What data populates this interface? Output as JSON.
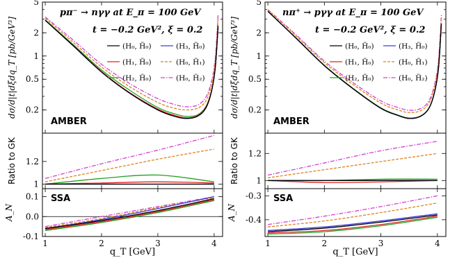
{
  "colors": {
    "H0_H0": "#000000",
    "H3_H0": "#3b3bd9",
    "H1_H0": "#e02020",
    "H0_H1": "#e0801a",
    "H2_H0": "#22a022",
    "H0_H2": "#d040d0"
  },
  "legend": [
    {
      "key": "H0_H0",
      "label": "(H₀, H̃₀)",
      "dash": "solid"
    },
    {
      "key": "H3_H0",
      "label": "(H₃, H̃₀)",
      "dash": "solid"
    },
    {
      "key": "H1_H0",
      "label": "(H₁, H̃₀)",
      "dash": "solid"
    },
    {
      "key": "H0_H1",
      "label": "(H₀, H̃₁)",
      "dash": "dashed"
    },
    {
      "key": "H2_H0",
      "label": "(H₂, H̃₀)",
      "dash": "solid"
    },
    {
      "key": "H0_H2",
      "label": "(H₀, H̃₂)",
      "dash": "dashdot"
    }
  ],
  "panels": [
    {
      "process": "pπ⁻ → nγγ at E_π = 100 GeV",
      "kinematics": "t = −0.2 GeV², ξ = 0.2",
      "experiment": "AMBER",
      "ylabel_top": "dσ/d|t|dξdq_T [pb/GeV³]",
      "ylabel_mid": "Ratio to GK",
      "ylabel_bot": "A_N",
      "ssa_tag": "SSA",
      "xlabel": "q_T [GeV]"
    },
    {
      "process": "nπ⁺ → pγγ at E_π = 100 GeV",
      "kinematics": "t = −0.2 GeV², ξ = 0.2",
      "experiment": "AMBER",
      "ylabel_top": "dσ/d|t|dξdq_T [pb/GeV³]",
      "ylabel_mid": "Ratio to GK",
      "ylabel_bot": "A_N",
      "ssa_tag": "SSA",
      "xlabel": "q_T [GeV]"
    }
  ],
  "chart_data": [
    {
      "type": "line",
      "title": "pπ⁻ → nγγ at E_π = 100 GeV",
      "subtitle": "t = −0.2 GeV², ξ = 0.2",
      "xlabel": "q_T [GeV]",
      "ylabel": "dσ/d|t|dξdq_T [pb/GeV³]",
      "yscale": "log",
      "xlim": [
        0.95,
        4.15
      ],
      "ylim": [
        0.1,
        5
      ],
      "xticks": [
        "1",
        "2",
        "3",
        "4"
      ],
      "yticks": [
        "0.2",
        "0.5",
        "1",
        "2",
        "5"
      ],
      "annotation": "AMBER",
      "legend_position": "top-right",
      "x": [
        1.0,
        1.5,
        2.0,
        2.5,
        3.0,
        3.3,
        3.5,
        3.7,
        3.85,
        3.95,
        4.02,
        4.07
      ],
      "series": [
        {
          "name": "(H₀, H̃₀)",
          "values": [
            2.9,
            1.35,
            0.62,
            0.33,
            0.2,
            0.165,
            0.155,
            0.165,
            0.21,
            0.34,
            0.7,
            2.4
          ]
        },
        {
          "name": "(H₃, H̃₀)",
          "values": [
            2.9,
            1.35,
            0.62,
            0.33,
            0.2,
            0.165,
            0.155,
            0.165,
            0.21,
            0.34,
            0.7,
            2.4
          ]
        },
        {
          "name": "(H₁, H̃₀)",
          "values": [
            2.9,
            1.36,
            0.63,
            0.335,
            0.205,
            0.17,
            0.158,
            0.168,
            0.215,
            0.35,
            0.72,
            2.5
          ]
        },
        {
          "name": "(H₀, H̃₁)",
          "values": [
            3.1,
            1.5,
            0.72,
            0.4,
            0.25,
            0.21,
            0.2,
            0.21,
            0.26,
            0.42,
            0.85,
            3.0
          ]
        },
        {
          "name": "(H₂, H̃₀)",
          "values": [
            2.95,
            1.4,
            0.66,
            0.36,
            0.215,
            0.178,
            0.165,
            0.172,
            0.22,
            0.35,
            0.72,
            2.45
          ]
        },
        {
          "name": "(H₀, H̃₂)",
          "values": [
            3.2,
            1.6,
            0.78,
            0.44,
            0.28,
            0.235,
            0.22,
            0.23,
            0.29,
            0.46,
            0.95,
            3.4
          ]
        }
      ],
      "ratio": {
        "ylabel": "Ratio to GK",
        "ylim": [
          0.96,
          1.45
        ],
        "yticks": [
          "1",
          "1.2"
        ],
        "x": [
          1.0,
          2.0,
          3.0,
          4.0
        ],
        "series": [
          {
            "name": "(H₀, H̃₀)",
            "values": [
              1.0,
              1.0,
              1.0,
              1.0
            ]
          },
          {
            "name": "(H₃, H̃₀)",
            "values": [
              1.0,
              1.0,
              1.0,
              1.0
            ]
          },
          {
            "name": "(H₁, H̃₀)",
            "values": [
              1.0,
              1.01,
              1.02,
              1.01
            ]
          },
          {
            "name": "(H₀, H̃₁)",
            "values": [
              1.02,
              1.12,
              1.22,
              1.31
            ]
          },
          {
            "name": "(H₂, H̃₀)",
            "values": [
              1.0,
              1.05,
              1.08,
              1.02
            ]
          },
          {
            "name": "(H₀, H̃₂)",
            "values": [
              1.05,
              1.18,
              1.3,
              1.43
            ]
          }
        ]
      },
      "ssa": {
        "ylabel": "A_N",
        "ylim": [
          -0.1,
          0.14
        ],
        "yticks": [
          "-0.1",
          "0.0",
          "0.1"
        ],
        "annotation": "SSA",
        "x": [
          1.0,
          2.0,
          3.0,
          4.0
        ],
        "series": [
          {
            "name": "(H₀, H̃₀)",
            "values": [
              -0.06,
              -0.02,
              0.03,
              0.09
            ]
          },
          {
            "name": "(H₃, H̃₀)",
            "values": [
              -0.06,
              -0.015,
              0.04,
              0.1
            ]
          },
          {
            "name": "(H₁, H̃₀)",
            "values": [
              -0.065,
              -0.025,
              0.025,
              0.085
            ]
          },
          {
            "name": "(H₀, H̃₁)",
            "values": [
              -0.055,
              -0.01,
              0.045,
              0.095
            ]
          },
          {
            "name": "(H₂, H̃₀)",
            "values": [
              -0.07,
              -0.03,
              0.02,
              0.08
            ]
          },
          {
            "name": "(H₀, H̃₂)",
            "values": [
              -0.05,
              0.0,
              0.05,
              0.1
            ]
          }
        ]
      }
    },
    {
      "type": "line",
      "title": "nπ⁺ → pγγ at E_π = 100 GeV",
      "subtitle": "t = −0.2 GeV², ξ = 0.2",
      "xlabel": "q_T [GeV]",
      "ylabel": "dσ/d|t|dξdq_T [pb/GeV³]",
      "yscale": "log",
      "xlim": [
        0.95,
        4.15
      ],
      "ylim": [
        0.1,
        5
      ],
      "xticks": [
        "1",
        "2",
        "3",
        "4"
      ],
      "yticks": [
        "0.2",
        "0.5",
        "1",
        "2",
        "5"
      ],
      "annotation": "AMBER",
      "legend_position": "top-right",
      "x": [
        1.0,
        1.5,
        2.0,
        2.5,
        3.0,
        3.3,
        3.5,
        3.7,
        3.85,
        3.95,
        4.02,
        4.07
      ],
      "series": [
        {
          "name": "(H₀, H̃₀)",
          "values": [
            3.8,
            1.7,
            0.75,
            0.38,
            0.21,
            0.17,
            0.155,
            0.165,
            0.21,
            0.34,
            0.7,
            2.6
          ]
        },
        {
          "name": "(H₃, H̃₀)",
          "values": [
            3.8,
            1.7,
            0.75,
            0.38,
            0.21,
            0.17,
            0.155,
            0.165,
            0.21,
            0.34,
            0.7,
            2.6
          ]
        },
        {
          "name": "(H₁, H̃₀)",
          "values": [
            3.8,
            1.7,
            0.75,
            0.38,
            0.21,
            0.17,
            0.156,
            0.166,
            0.21,
            0.345,
            0.71,
            2.65
          ]
        },
        {
          "name": "(H₀, H̃₁)",
          "values": [
            3.95,
            1.82,
            0.82,
            0.43,
            0.245,
            0.2,
            0.185,
            0.195,
            0.245,
            0.4,
            0.82,
            3.1
          ]
        },
        {
          "name": "(H₂, H̃₀)",
          "values": [
            3.8,
            1.72,
            0.76,
            0.385,
            0.213,
            0.172,
            0.157,
            0.167,
            0.212,
            0.345,
            0.71,
            2.6
          ]
        },
        {
          "name": "(H₀, H̃₂)",
          "values": [
            4.0,
            1.88,
            0.86,
            0.455,
            0.262,
            0.215,
            0.198,
            0.208,
            0.262,
            0.43,
            0.88,
            3.4
          ]
        }
      ],
      "ratio": {
        "ylabel": "Ratio to GK",
        "ylim": [
          0.94,
          1.35
        ],
        "yticks": [
          "1",
          "1.2"
        ],
        "x": [
          1.0,
          2.0,
          3.0,
          4.0
        ],
        "series": [
          {
            "name": "(H₀, H̃₀)",
            "values": [
              1.0,
              1.0,
              1.0,
              1.0
            ]
          },
          {
            "name": "(H₃, H̃₀)",
            "values": [
              1.0,
              1.0,
              1.0,
              1.0
            ]
          },
          {
            "name": "(H₁, H̃₀)",
            "values": [
              1.0,
              0.985,
              0.99,
              1.0
            ]
          },
          {
            "name": "(H₀, H̃₁)",
            "values": [
              1.02,
              1.08,
              1.14,
              1.2
            ]
          },
          {
            "name": "(H₂, H̃₀)",
            "values": [
              1.0,
              1.0,
              1.01,
              1.01
            ]
          },
          {
            "name": "(H₀, H̃₂)",
            "values": [
              1.04,
              1.13,
              1.22,
              1.29
            ]
          }
        ]
      },
      "ssa": {
        "ylabel": "A_N",
        "ylim": [
          -0.47,
          -0.27
        ],
        "yticks": [
          "-0.4",
          "-0.3"
        ],
        "annotation": "SSA",
        "x": [
          1.0,
          2.0,
          3.0,
          4.0
        ],
        "series": [
          {
            "name": "(H₀, H̃₀)",
            "values": [
              -0.45,
              -0.435,
              -0.41,
              -0.38
            ]
          },
          {
            "name": "(H₃, H̃₀)",
            "values": [
              -0.445,
              -0.43,
              -0.405,
              -0.375
            ]
          },
          {
            "name": "(H₁, H̃₀)",
            "values": [
              -0.455,
              -0.445,
              -0.42,
              -0.385
            ]
          },
          {
            "name": "(H₀, H̃₁)",
            "values": [
              -0.43,
              -0.405,
              -0.37,
              -0.33
            ]
          },
          {
            "name": "(H₂, H̃₀)",
            "values": [
              -0.46,
              -0.45,
              -0.425,
              -0.39
            ]
          },
          {
            "name": "(H₀, H̃₂)",
            "values": [
              -0.42,
              -0.385,
              -0.345,
              -0.3
            ]
          }
        ]
      }
    }
  ]
}
